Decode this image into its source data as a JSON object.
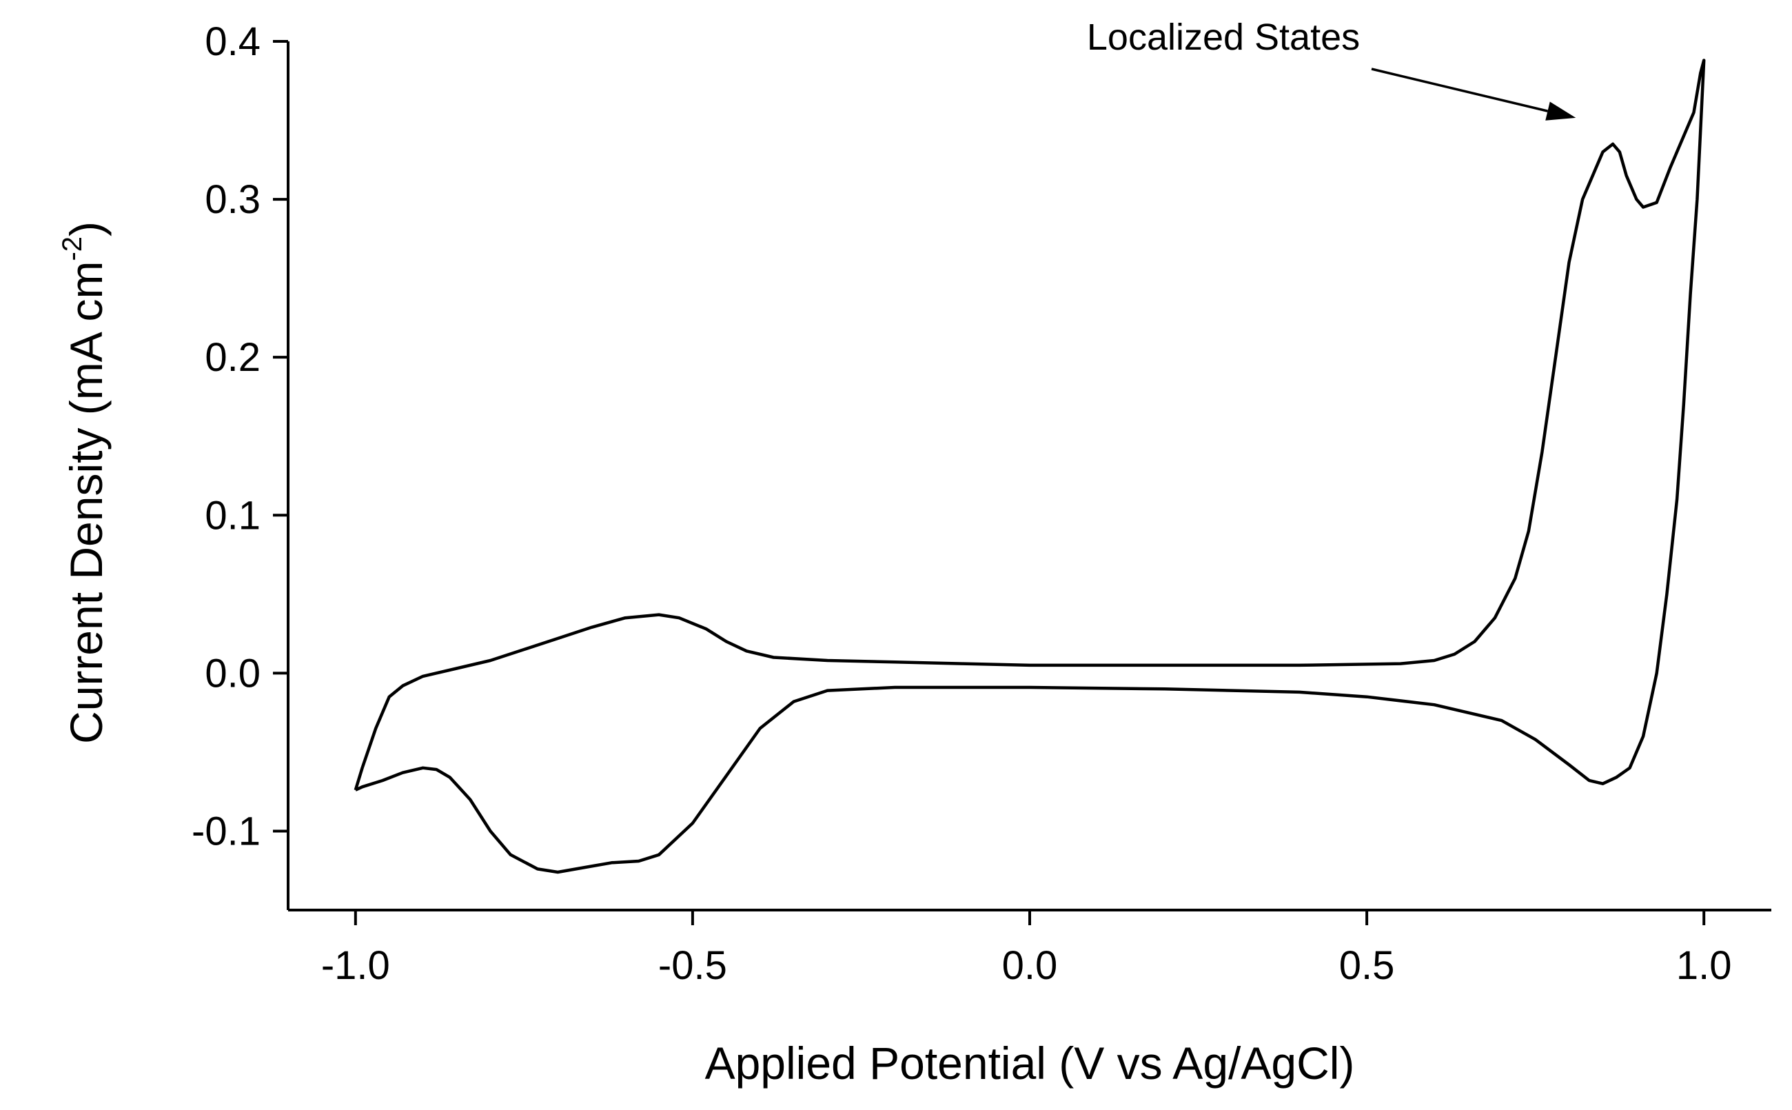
{
  "chart_data": {
    "type": "line",
    "xlabel": "Applied Potential (V vs Ag/AgCl)",
    "ylabel_main": "Current Density (mA cm",
    "ylabel_exp": "-2",
    "ylabel_close": ")",
    "xlim": [
      -1.1,
      1.1
    ],
    "ylim": [
      -0.15,
      0.4
    ],
    "xticks": [
      -1.0,
      -0.5,
      0.0,
      0.5,
      1.0
    ],
    "xtick_labels": [
      "-1.0",
      "-0.5",
      "0.0",
      "0.5",
      "1.0"
    ],
    "yticks": [
      -0.1,
      0.0,
      0.1,
      0.2,
      0.3,
      0.4
    ],
    "ytick_labels": [
      "-0.1",
      "0.0",
      "0.1",
      "0.2",
      "0.3",
      "0.4"
    ],
    "grid": false,
    "legend": "none",
    "annotation": {
      "text": "Localized States",
      "x": 0.81,
      "y": 0.335
    },
    "series": [
      {
        "color": "#000000",
        "points": [
          [
            -1.0,
            -0.074
          ],
          [
            -0.99,
            -0.06
          ],
          [
            -0.97,
            -0.035
          ],
          [
            -0.95,
            -0.015
          ],
          [
            -0.93,
            -0.008
          ],
          [
            -0.9,
            -0.002
          ],
          [
            -0.85,
            0.003
          ],
          [
            -0.8,
            0.008
          ],
          [
            -0.75,
            0.015
          ],
          [
            -0.7,
            0.022
          ],
          [
            -0.65,
            0.029
          ],
          [
            -0.6,
            0.035
          ],
          [
            -0.55,
            0.037
          ],
          [
            -0.52,
            0.035
          ],
          [
            -0.48,
            0.028
          ],
          [
            -0.45,
            0.02
          ],
          [
            -0.42,
            0.014
          ],
          [
            -0.38,
            0.01
          ],
          [
            -0.3,
            0.008
          ],
          [
            -0.2,
            0.007
          ],
          [
            -0.1,
            0.006
          ],
          [
            0.0,
            0.005
          ],
          [
            0.2,
            0.005
          ],
          [
            0.4,
            0.005
          ],
          [
            0.55,
            0.006
          ],
          [
            0.6,
            0.008
          ],
          [
            0.63,
            0.012
          ],
          [
            0.66,
            0.02
          ],
          [
            0.69,
            0.035
          ],
          [
            0.72,
            0.06
          ],
          [
            0.74,
            0.09
          ],
          [
            0.76,
            0.14
          ],
          [
            0.78,
            0.2
          ],
          [
            0.8,
            0.26
          ],
          [
            0.82,
            0.3
          ],
          [
            0.84,
            0.32
          ],
          [
            0.85,
            0.33
          ],
          [
            0.865,
            0.335
          ],
          [
            0.875,
            0.33
          ],
          [
            0.885,
            0.315
          ],
          [
            0.9,
            0.3
          ],
          [
            0.91,
            0.295
          ],
          [
            0.93,
            0.298
          ],
          [
            0.95,
            0.32
          ],
          [
            0.97,
            0.34
          ],
          [
            0.985,
            0.355
          ],
          [
            0.995,
            0.38
          ],
          [
            1.0,
            0.388
          ],
          [
            0.99,
            0.3
          ],
          [
            0.98,
            0.24
          ],
          [
            0.97,
            0.17
          ],
          [
            0.96,
            0.11
          ],
          [
            0.945,
            0.05
          ],
          [
            0.93,
            0.0
          ],
          [
            0.91,
            -0.04
          ],
          [
            0.89,
            -0.06
          ],
          [
            0.87,
            -0.066
          ],
          [
            0.85,
            -0.07
          ],
          [
            0.83,
            -0.068
          ],
          [
            0.8,
            -0.058
          ],
          [
            0.75,
            -0.042
          ],
          [
            0.7,
            -0.03
          ],
          [
            0.6,
            -0.02
          ],
          [
            0.5,
            -0.015
          ],
          [
            0.4,
            -0.012
          ],
          [
            0.2,
            -0.01
          ],
          [
            0.0,
            -0.009
          ],
          [
            -0.2,
            -0.009
          ],
          [
            -0.3,
            -0.011
          ],
          [
            -0.35,
            -0.018
          ],
          [
            -0.4,
            -0.035
          ],
          [
            -0.45,
            -0.065
          ],
          [
            -0.5,
            -0.095
          ],
          [
            -0.55,
            -0.115
          ],
          [
            -0.58,
            -0.119
          ],
          [
            -0.62,
            -0.12
          ],
          [
            -0.66,
            -0.123
          ],
          [
            -0.7,
            -0.126
          ],
          [
            -0.73,
            -0.124
          ],
          [
            -0.77,
            -0.115
          ],
          [
            -0.8,
            -0.1
          ],
          [
            -0.83,
            -0.08
          ],
          [
            -0.86,
            -0.066
          ],
          [
            -0.88,
            -0.061
          ],
          [
            -0.9,
            -0.06
          ],
          [
            -0.93,
            -0.063
          ],
          [
            -0.96,
            -0.068
          ],
          [
            -0.99,
            -0.072
          ],
          [
            -1.0,
            -0.074
          ]
        ]
      }
    ]
  }
}
